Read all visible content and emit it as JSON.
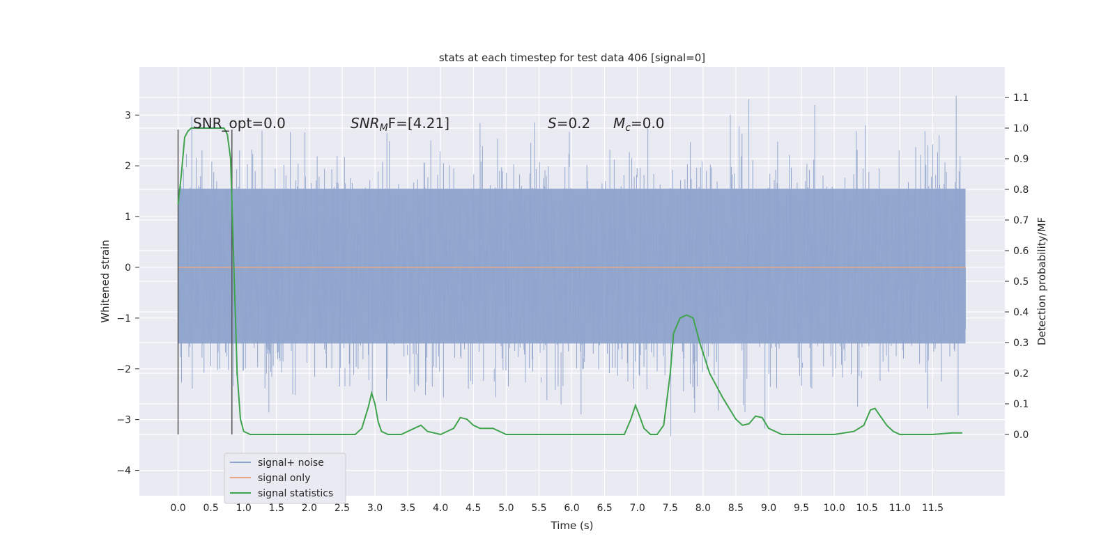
{
  "chart_data": {
    "type": "line",
    "title": "stats at each timestep for test data 406 [signal=0]",
    "xlabel": "Time (s)",
    "ylabel_left": "Whitened strain",
    "ylabel_right": "Detection probability/MF",
    "xlim": [
      -0.59,
      12.6
    ],
    "ylim_left": [
      -4.5,
      3.95
    ],
    "ylim_right": [
      -0.2,
      1.2
    ],
    "grid": true,
    "legend_position": "lower-left",
    "x_ticks": [
      "0.0",
      "0.5",
      "1.0",
      "1.5",
      "2.0",
      "2.5",
      "3.0",
      "3.5",
      "4.0",
      "4.5",
      "5.0",
      "5.5",
      "6.0",
      "6.5",
      "7.0",
      "7.5",
      "8.0",
      "8.5",
      "9.0",
      "9.5",
      "10.0",
      "10.5",
      "11.0",
      "11.5"
    ],
    "y_ticks_left": [
      "3",
      "2",
      "1",
      "0",
      "−1",
      "−2",
      "−3",
      "−4"
    ],
    "y_ticks_right": [
      "1.1",
      "1.0",
      "0.9",
      "0.8",
      "0.7",
      "0.6",
      "0.5",
      "0.4",
      "0.3",
      "0.2",
      "0.1",
      "0.0"
    ],
    "annotations": {
      "snr_opt": "SNR_opt=0.0",
      "snr_mf_main": "SNR",
      "snr_mf_sub": "M",
      "snr_mf_rest": "F=[4.21]",
      "s_main": "S",
      "s_rest": "=0.2",
      "mc_main": "M",
      "mc_sub": "c",
      "mc_rest": "=0.0"
    },
    "vertical_markers": [
      0.0,
      0.82
    ],
    "series": [
      {
        "name": "signal+ noise",
        "color": "#8fa4cc",
        "description_range": [
          -3.6,
          3.6
        ],
        "x_range": [
          0.0,
          12.0
        ]
      },
      {
        "name": "signal only",
        "color": "#e8a584",
        "x": [
          0.0,
          12.0
        ],
        "y": [
          0.0,
          0.0
        ]
      },
      {
        "name": "signal statistics",
        "color": "#3fa34d",
        "x": [
          0.0,
          0.05,
          0.1,
          0.15,
          0.2,
          0.3,
          0.4,
          0.5,
          0.6,
          0.7,
          0.75,
          0.8,
          0.85,
          0.9,
          0.95,
          1.0,
          1.1,
          1.5,
          2.0,
          2.5,
          2.7,
          2.8,
          2.9,
          2.95,
          3.0,
          3.05,
          3.1,
          3.2,
          3.4,
          3.6,
          3.7,
          3.8,
          4.0,
          4.2,
          4.3,
          4.4,
          4.5,
          4.6,
          4.8,
          5.0,
          5.5,
          6.0,
          6.5,
          6.8,
          6.9,
          6.97,
          7.05,
          7.1,
          7.2,
          7.3,
          7.4,
          7.5,
          7.55,
          7.65,
          7.75,
          7.85,
          7.95,
          8.1,
          8.3,
          8.5,
          8.6,
          8.7,
          8.8,
          8.9,
          9.0,
          9.2,
          9.5,
          10.0,
          10.3,
          10.45,
          10.55,
          10.62,
          10.7,
          10.8,
          10.9,
          11.0,
          11.2,
          11.5,
          11.8,
          11.95
        ],
        "y": [
          0.75,
          0.85,
          0.97,
          0.99,
          1.0,
          1.0,
          1.0,
          1.0,
          1.0,
          1.0,
          0.98,
          0.9,
          0.55,
          0.2,
          0.05,
          0.01,
          0.0,
          0.0,
          0.0,
          0.0,
          0.0,
          0.02,
          0.09,
          0.135,
          0.1,
          0.04,
          0.01,
          0.0,
          0.0,
          0.02,
          0.03,
          0.01,
          0.0,
          0.02,
          0.055,
          0.05,
          0.03,
          0.02,
          0.02,
          0.0,
          0.0,
          0.0,
          0.0,
          0.0,
          0.05,
          0.095,
          0.05,
          0.02,
          0.0,
          0.0,
          0.03,
          0.2,
          0.33,
          0.38,
          0.39,
          0.38,
          0.3,
          0.2,
          0.12,
          0.05,
          0.03,
          0.035,
          0.06,
          0.055,
          0.02,
          0.0,
          0.0,
          0.0,
          0.01,
          0.03,
          0.08,
          0.085,
          0.06,
          0.03,
          0.01,
          0.0,
          0.0,
          0.0,
          0.005,
          0.005
        ]
      }
    ]
  }
}
